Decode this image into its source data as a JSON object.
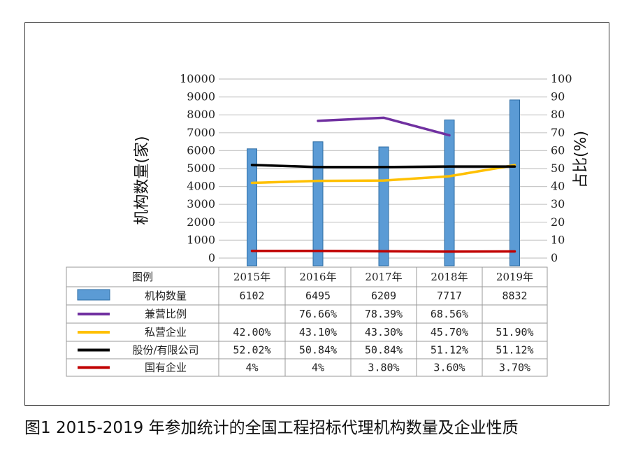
{
  "caption": "图1  2015-2019 年参加统计的全国工程招标代理机构数量及企业性质",
  "chart_data": {
    "type": "bar",
    "categories": [
      "2015年",
      "2016年",
      "2017年",
      "2018年",
      "2019年"
    ],
    "ylabel": "机构数量(家)",
    "ylabel_right": "占比(%)",
    "ylim": [
      0,
      10000
    ],
    "ylim_right": [
      0,
      100
    ],
    "yticks": [
      "0",
      "1000",
      "2000",
      "3000",
      "4000",
      "5000",
      "6000",
      "7000",
      "8000",
      "9000",
      "10000"
    ],
    "yticks_right": [
      "0",
      "10",
      "20",
      "30",
      "40",
      "50",
      "60",
      "70",
      "80",
      "90",
      "100"
    ],
    "grid": true,
    "bar_series": {
      "name": "机构数量",
      "color": "#5B9BD5",
      "values": [
        6102,
        6495,
        6209,
        7717,
        8832
      ],
      "labels": [
        "6102",
        "6495",
        "6209",
        "7717",
        "8832"
      ]
    },
    "line_series": [
      {
        "name": "兼营比例",
        "color": "#7030A0",
        "values": [
          null,
          76.66,
          78.39,
          68.56,
          null
        ],
        "labels": [
          "",
          "76.66%",
          "78.39%",
          "68.56%",
          ""
        ]
      },
      {
        "name": "私营企业",
        "color": "#FFC000",
        "values": [
          42.0,
          43.1,
          43.3,
          45.7,
          51.9
        ],
        "labels": [
          "42.00%",
          "43.10%",
          "43.30%",
          "45.70%",
          "51.90%"
        ]
      },
      {
        "name": "股份/有限公司",
        "color": "#000000",
        "values": [
          52.02,
          50.84,
          50.84,
          51.12,
          51.12
        ],
        "labels": [
          "52.02%",
          "50.84%",
          "50.84%",
          "51.12%",
          "51.12%"
        ]
      },
      {
        "name": "国有企业",
        "color": "#C00000",
        "values": [
          4,
          4,
          3.8,
          3.6,
          3.7
        ],
        "labels": [
          "4%",
          "4%",
          "3.80%",
          "3.60%",
          "3.70%"
        ]
      }
    ],
    "legend_header": "图例",
    "legend_placement": "data-table-bottom"
  }
}
